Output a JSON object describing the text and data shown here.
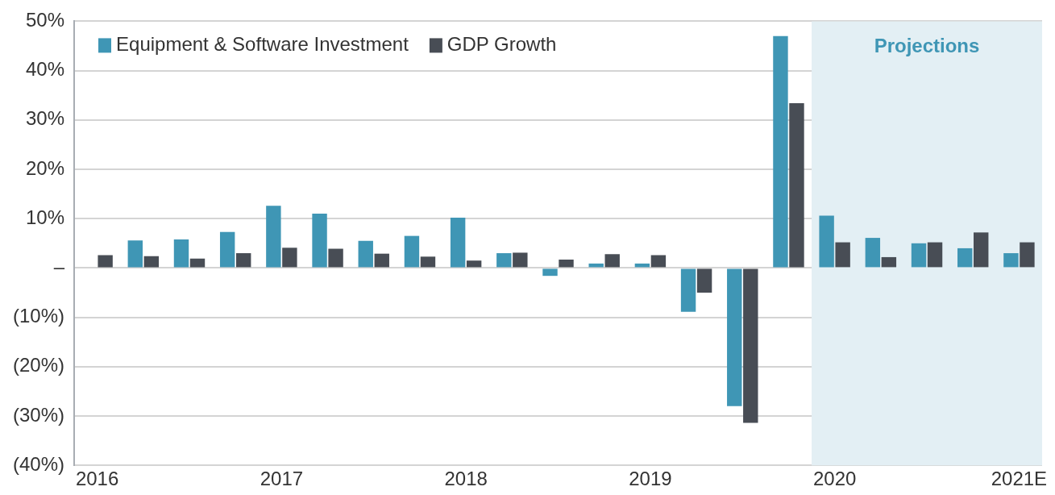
{
  "chart_data": {
    "type": "bar",
    "categories": [
      "2016",
      null,
      null,
      null,
      "2017",
      null,
      null,
      null,
      "2018",
      null,
      null,
      null,
      "2019",
      null,
      null,
      null,
      "2020",
      null,
      null,
      null,
      "2021E"
    ],
    "series": [
      {
        "name": "Equipment & Software Investment",
        "color": "#3f96b5",
        "values": [
          null,
          5.6,
          5.8,
          7.3,
          12.6,
          11.0,
          5.5,
          6.5,
          10.2,
          3.0,
          -1.6,
          0.9,
          0.9,
          -8.9,
          -28.0,
          47.0,
          10.6,
          6.1,
          5.0,
          4.0,
          3.0
        ]
      },
      {
        "name": "GDP Growth",
        "color": "#484d55",
        "values": [
          2.6,
          2.4,
          1.9,
          3.0,
          4.1,
          3.9,
          2.9,
          2.3,
          1.5,
          3.1,
          1.7,
          2.8,
          2.6,
          -5.0,
          -31.4,
          33.4,
          5.2,
          2.2,
          5.2,
          7.2,
          5.2
        ]
      }
    ],
    "ylim": [
      -40,
      50
    ],
    "yticks": [
      {
        "value": -40,
        "label": "(40%)"
      },
      {
        "value": -30,
        "label": "(30%)"
      },
      {
        "value": -20,
        "label": "(20%)"
      },
      {
        "value": -10,
        "label": "(10%)"
      },
      {
        "value": 0,
        "label": "–"
      },
      {
        "value": 10,
        "label": "10%"
      },
      {
        "value": 20,
        "label": "20%"
      },
      {
        "value": 30,
        "label": "30%"
      },
      {
        "value": 40,
        "label": "40%"
      },
      {
        "value": 50,
        "label": "50%"
      }
    ],
    "bands": [
      {
        "axis": "x",
        "from": "2020",
        "to": "2021E",
        "label": "Projections",
        "color": "#e3eff4"
      }
    ],
    "grid": "y",
    "legend": "top left"
  }
}
